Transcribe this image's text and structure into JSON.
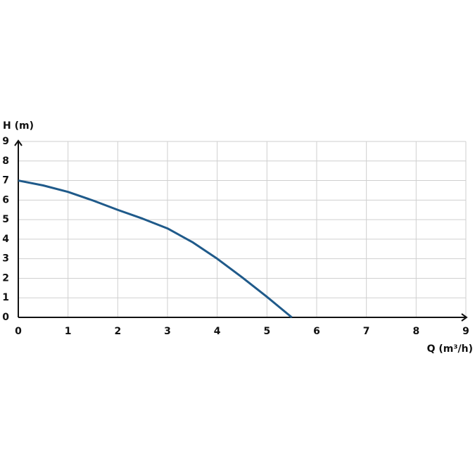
{
  "chart_data": {
    "type": "line",
    "ylabel": "H (m)",
    "xlabel": "Q (m³/h)",
    "x": [
      0,
      0.5,
      1,
      1.5,
      2,
      2.5,
      3,
      3.5,
      4,
      4.5,
      5,
      5.5
    ],
    "values": [
      7,
      6.75,
      6.42,
      5.98,
      5.5,
      5.05,
      4.55,
      3.85,
      3.0,
      2.05,
      1.05,
      0
    ],
    "color": "#1f5a8a",
    "xlim": [
      0,
      9
    ],
    "xticks": [
      0,
      1,
      2,
      3,
      4,
      5,
      6,
      7,
      8,
      9
    ],
    "ylim": [
      0,
      9
    ],
    "yticks": [
      0,
      1,
      2,
      3,
      4,
      5,
      6,
      7,
      8,
      9
    ],
    "grid": true
  }
}
